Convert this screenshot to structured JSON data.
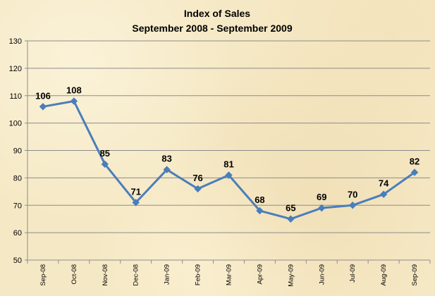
{
  "chart_data": {
    "type": "line",
    "title": "Index of Sales",
    "subtitle": "September 2008 - September 2009",
    "categories": [
      "Sep-08",
      "Oct-08",
      "Nov-08",
      "Dec-08",
      "Jan-09",
      "Feb-09",
      "Mar-09",
      "Apr-09",
      "May-09",
      "Jun-09",
      "Jul-09",
      "Aug-09",
      "Sep-09"
    ],
    "series": [
      {
        "values": [
          106,
          108,
          85,
          71,
          83,
          76,
          81,
          68,
          65,
          69,
          70,
          74,
          82
        ]
      }
    ],
    "ylim": [
      50,
      130
    ],
    "yticks": [
      50,
      60,
      70,
      80,
      90,
      100,
      110,
      120,
      130
    ],
    "grid": true,
    "legend": "none",
    "colors": {
      "line": "#4a7ebb",
      "grid": "#8c8c8c",
      "axis": "#8c8c8c"
    }
  }
}
